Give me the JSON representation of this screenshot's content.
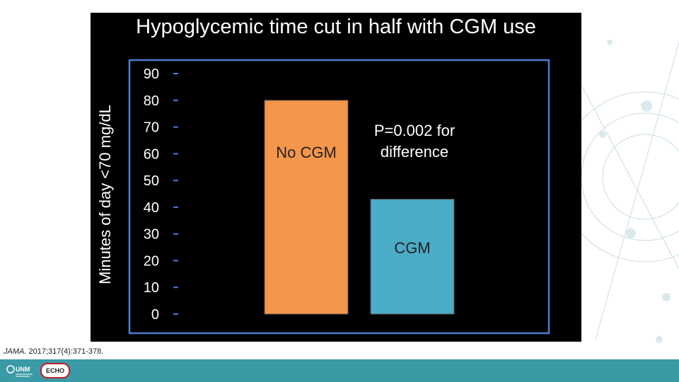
{
  "slide": {
    "title": "Hypoglycemic time cut in half with CGM use",
    "citation_journal": "JAMA.",
    "citation_rest": " 2017;317(4):371-378."
  },
  "logos": {
    "unm_text": "UNM",
    "echo_text": "ECHO"
  },
  "colors": {
    "background": "#000000",
    "frame": "#4a7fd0",
    "no_cgm_bar": "#f5964a",
    "cgm_bar": "#4aacc6",
    "footer": "#3a9aa6"
  },
  "chart_data": {
    "type": "bar",
    "title": "Hypoglycemic time cut in half with CGM use",
    "ylabel": "Minutes of day <70 mg/dL",
    "ylim": [
      0,
      90
    ],
    "yticks": [
      0,
      10,
      20,
      30,
      40,
      50,
      60,
      70,
      80,
      90
    ],
    "categories": [
      "No CGM",
      "CGM"
    ],
    "values": [
      80,
      43
    ],
    "bar_colors": [
      "#f5964a",
      "#4aacc6"
    ],
    "annotations": [
      "P=0.002 for",
      "difference"
    ],
    "grid": false
  }
}
